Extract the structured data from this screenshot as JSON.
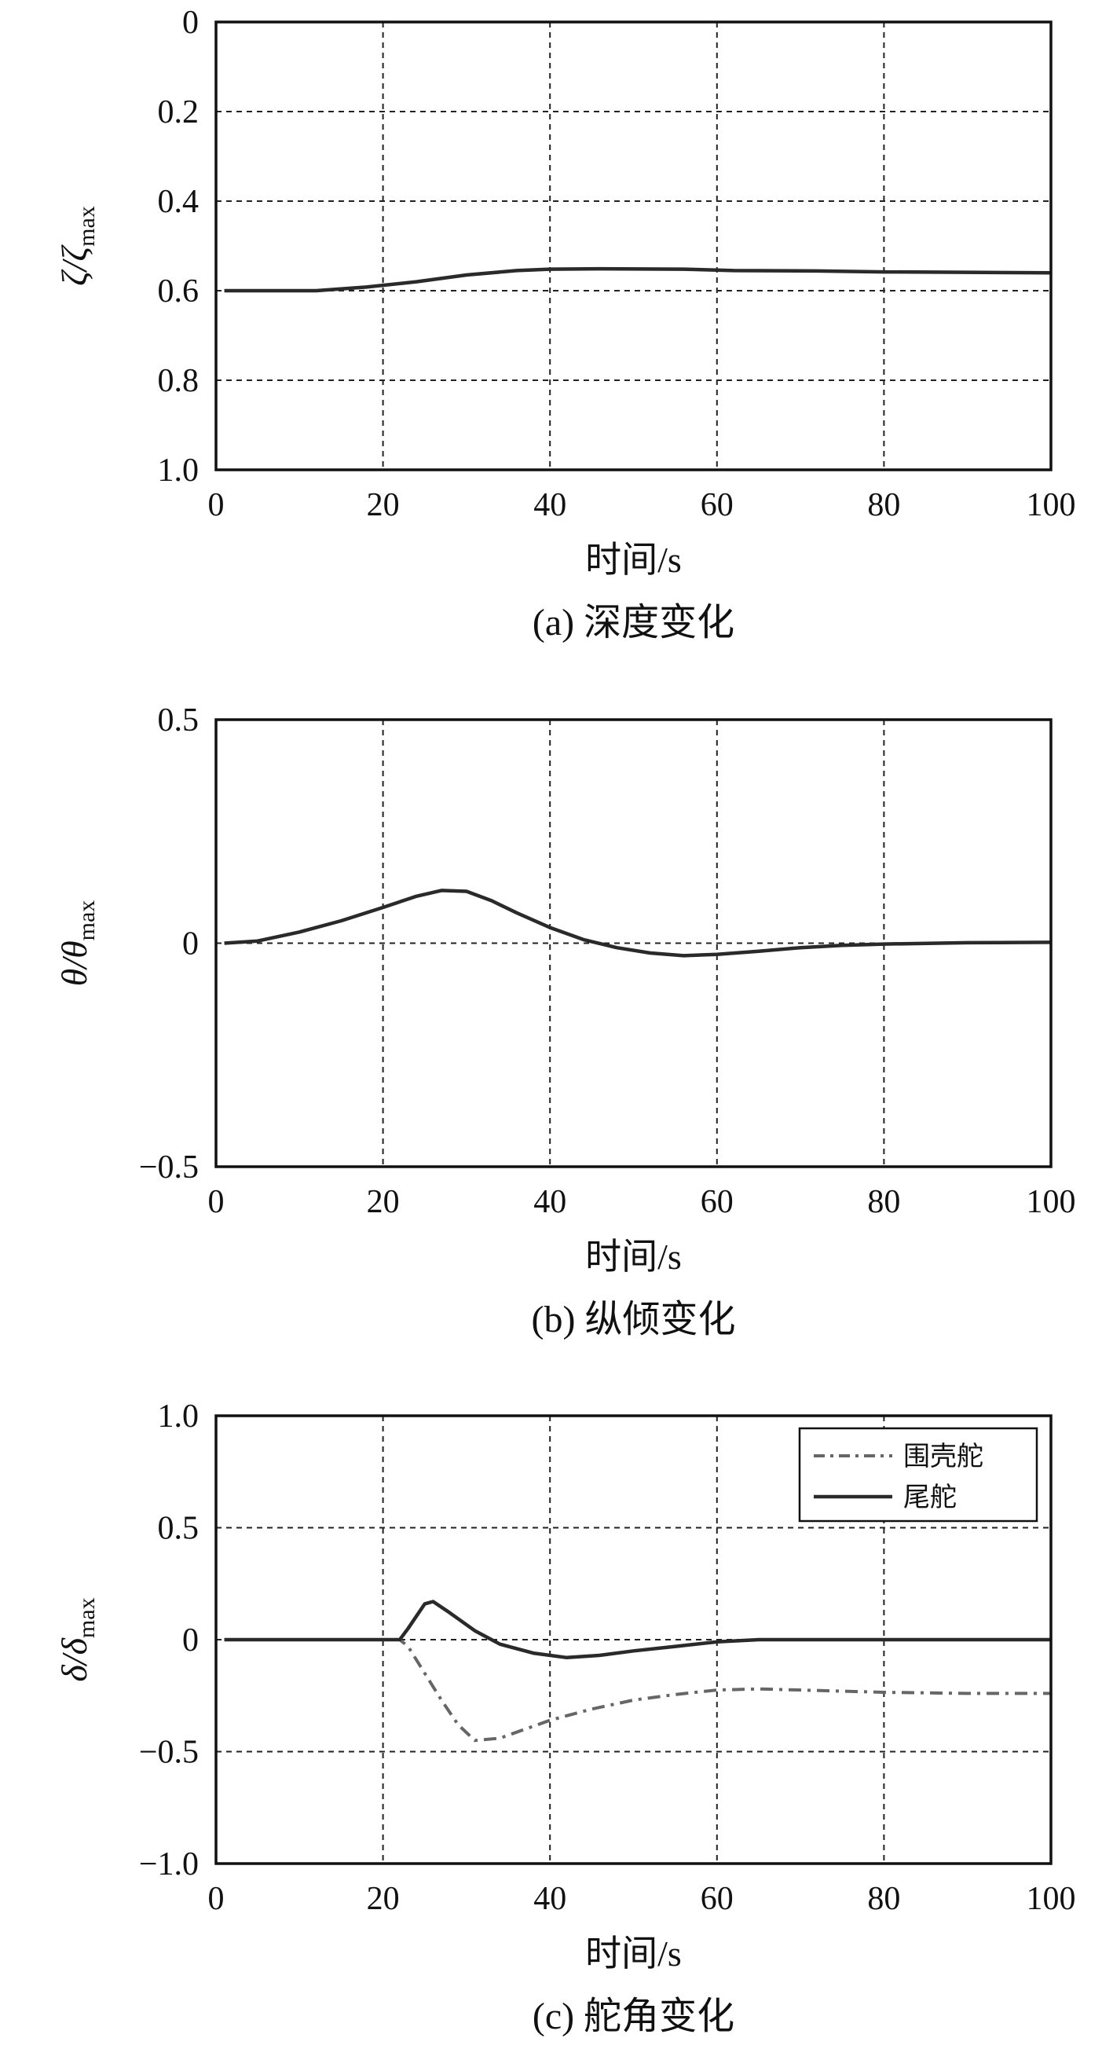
{
  "chart_data": [
    {
      "type": "line",
      "panel": "a",
      "caption": "(a) 深度变化",
      "xlabel": "时间/s",
      "ylabel": {
        "main": "ζ/ζ",
        "sub": "max"
      },
      "xlim": [
        0,
        100
      ],
      "ylim": [
        0,
        1.0
      ],
      "y_inverted": true,
      "x_ticks": [
        "0",
        "20",
        "40",
        "60",
        "80",
        "100"
      ],
      "y_ticks": [
        {
          "v": 0,
          "t": "0"
        },
        {
          "v": 0.2,
          "t": "0.2"
        },
        {
          "v": 0.4,
          "t": "0.4"
        },
        {
          "v": 0.6,
          "t": "0.6"
        },
        {
          "v": 0.8,
          "t": "0.8"
        },
        {
          "v": 1.0,
          "t": "1.0"
        }
      ],
      "x_gridlines": [
        20,
        40,
        60,
        80
      ],
      "y_gridlines": [
        0.2,
        0.4,
        0.6,
        0.8
      ],
      "series": [
        {
          "style": "solid",
          "points": [
            [
              1,
              0.6
            ],
            [
              12,
              0.6
            ],
            [
              18,
              0.592
            ],
            [
              24,
              0.58
            ],
            [
              30,
              0.565
            ],
            [
              36,
              0.555
            ],
            [
              40,
              0.552
            ],
            [
              46,
              0.551
            ],
            [
              56,
              0.552
            ],
            [
              62,
              0.555
            ],
            [
              72,
              0.556
            ],
            [
              80,
              0.558
            ],
            [
              90,
              0.559
            ],
            [
              100,
              0.56
            ]
          ]
        }
      ]
    },
    {
      "type": "line",
      "panel": "b",
      "caption": "(b) 纵倾变化",
      "xlabel": "时间/s",
      "ylabel": {
        "main": "θ/θ",
        "sub": "max"
      },
      "xlim": [
        0,
        100
      ],
      "ylim": [
        -0.5,
        0.5
      ],
      "y_inverted": false,
      "x_ticks": [
        "0",
        "20",
        "40",
        "60",
        "80",
        "100"
      ],
      "y_ticks": [
        {
          "v": 0.5,
          "t": "0.5"
        },
        {
          "v": 0,
          "t": "0"
        },
        {
          "v": -0.5,
          "t": "−0.5"
        }
      ],
      "x_gridlines": [
        20,
        40,
        60,
        80
      ],
      "y_gridlines": [
        0
      ],
      "series": [
        {
          "style": "solid",
          "points": [
            [
              1,
              0
            ],
            [
              5,
              0.005
            ],
            [
              10,
              0.025
            ],
            [
              15,
              0.05
            ],
            [
              20,
              0.08
            ],
            [
              24,
              0.105
            ],
            [
              27,
              0.118
            ],
            [
              30,
              0.116
            ],
            [
              33,
              0.095
            ],
            [
              36,
              0.068
            ],
            [
              40,
              0.035
            ],
            [
              44,
              0.008
            ],
            [
              48,
              -0.01
            ],
            [
              52,
              -0.022
            ],
            [
              56,
              -0.028
            ],
            [
              60,
              -0.025
            ],
            [
              65,
              -0.018
            ],
            [
              70,
              -0.01
            ],
            [
              75,
              -0.005
            ],
            [
              80,
              -0.002
            ],
            [
              90,
              0.001
            ],
            [
              100,
              0.002
            ]
          ]
        }
      ]
    },
    {
      "type": "line",
      "panel": "c",
      "caption": "(c) 舵角变化",
      "xlabel": "时间/s",
      "ylabel": {
        "main": "δ/δ",
        "sub": "max"
      },
      "xlim": [
        0,
        100
      ],
      "ylim": [
        -1.0,
        1.0
      ],
      "y_inverted": false,
      "x_ticks": [
        "0",
        "20",
        "40",
        "60",
        "80",
        "100"
      ],
      "y_ticks": [
        {
          "v": 1.0,
          "t": "1.0"
        },
        {
          "v": 0.5,
          "t": "0.5"
        },
        {
          "v": 0,
          "t": "0"
        },
        {
          "v": -0.5,
          "t": "−0.5"
        },
        {
          "v": -1.0,
          "t": "−1.0"
        }
      ],
      "x_gridlines": [
        20,
        40,
        60,
        80
      ],
      "y_gridlines": [
        0.5,
        0,
        -0.5
      ],
      "legend": {
        "position": "top-right"
      },
      "series": [
        {
          "name": "围壳舵",
          "style": "dashdot",
          "color": "#666666",
          "points": [
            [
              1,
              0
            ],
            [
              22,
              0
            ],
            [
              23,
              -0.03
            ],
            [
              25,
              -0.15
            ],
            [
              27,
              -0.27
            ],
            [
              29,
              -0.38
            ],
            [
              31,
              -0.45
            ],
            [
              34,
              -0.44
            ],
            [
              37,
              -0.4
            ],
            [
              40,
              -0.36
            ],
            [
              45,
              -0.31
            ],
            [
              50,
              -0.27
            ],
            [
              55,
              -0.245
            ],
            [
              60,
              -0.225
            ],
            [
              65,
              -0.22
            ],
            [
              70,
              -0.225
            ],
            [
              80,
              -0.235
            ],
            [
              90,
              -0.24
            ],
            [
              100,
              -0.24
            ]
          ]
        },
        {
          "name": "尾舵",
          "style": "solid",
          "color": "#2a2a2a",
          "points": [
            [
              1,
              0
            ],
            [
              22,
              0
            ],
            [
              23,
              0.05
            ],
            [
              25,
              0.16
            ],
            [
              26,
              0.17
            ],
            [
              28,
              0.12
            ],
            [
              31,
              0.04
            ],
            [
              34,
              -0.02
            ],
            [
              38,
              -0.06
            ],
            [
              42,
              -0.08
            ],
            [
              46,
              -0.07
            ],
            [
              50,
              -0.05
            ],
            [
              55,
              -0.03
            ],
            [
              60,
              -0.01
            ],
            [
              65,
              0
            ],
            [
              100,
              0
            ]
          ]
        }
      ]
    }
  ]
}
